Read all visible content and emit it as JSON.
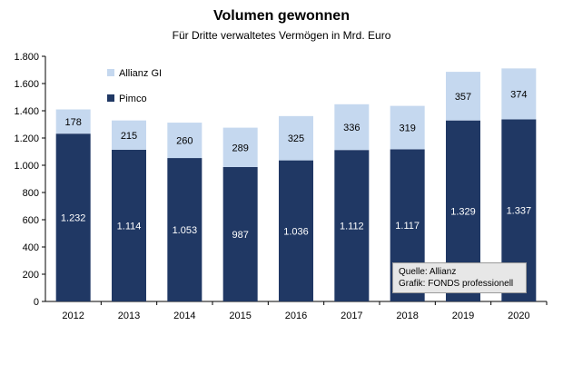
{
  "title": "Volumen gewonnen",
  "subtitle": "Für Dritte verwaltetes Vermögen in Mrd. Euro",
  "source_line1": "Quelle: Allianz",
  "source_line2": "Grafik: FONDS professionell",
  "colors": {
    "pimco": "#203864",
    "allianz": "#c5d8ef",
    "axis": "#000000"
  },
  "chart_data": {
    "type": "bar",
    "stacked": true,
    "title": "Volumen gewonnen",
    "subtitle": "Für Dritte verwaltetes Vermögen in Mrd. Euro",
    "categories": [
      "2012",
      "2013",
      "2014",
      "2015",
      "2016",
      "2017",
      "2018",
      "2019",
      "2020"
    ],
    "series": [
      {
        "name": "Pimco",
        "values": [
          1232,
          1114,
          1053,
          987,
          1036,
          1112,
          1117,
          1329,
          1337
        ],
        "labels": [
          "1.232",
          "1.114",
          "1.053",
          "987",
          "1.036",
          "1.112",
          "1.117",
          "1.329",
          "1.337"
        ]
      },
      {
        "name": "Allianz GI",
        "values": [
          178,
          215,
          260,
          289,
          325,
          336,
          319,
          357,
          374
        ],
        "labels": [
          "178",
          "215",
          "260",
          "289",
          "325",
          "336",
          "319",
          "357",
          "374"
        ]
      }
    ],
    "yticks": [
      0,
      200,
      400,
      600,
      800,
      1000,
      1200,
      1400,
      1600,
      1800
    ],
    "ytick_labels": [
      "0",
      "200",
      "400",
      "600",
      "800",
      "1.000",
      "1.200",
      "1.400",
      "1.600",
      "1.800"
    ],
    "ylim": [
      0,
      1800
    ],
    "grid": false,
    "legend_position": "top-left"
  }
}
